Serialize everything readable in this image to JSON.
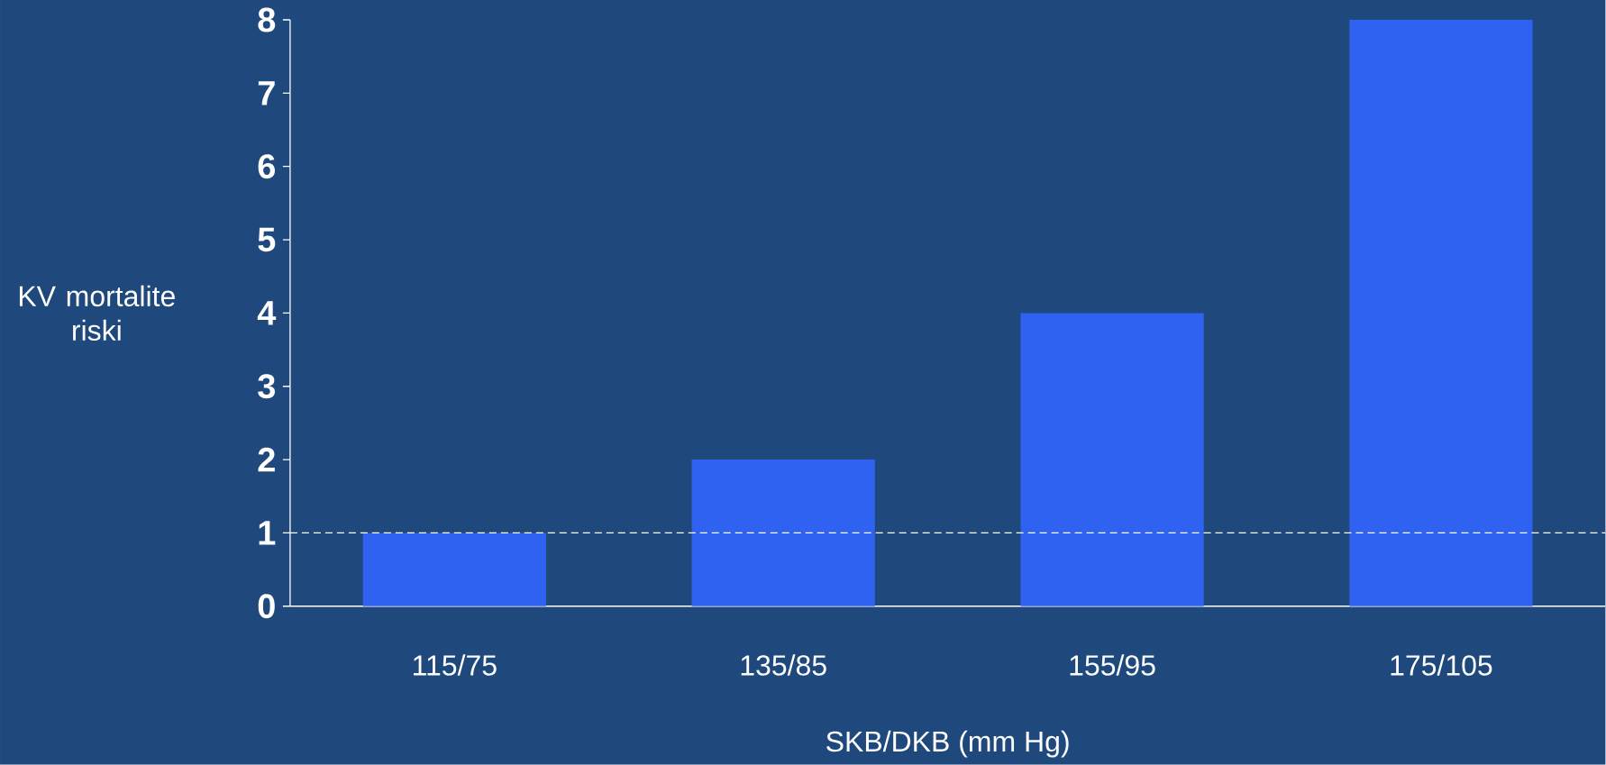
{
  "chart_data": {
    "type": "bar",
    "xlabel": "SKB/DKB (mm Hg)",
    "ylabel": "KV mortalite riski",
    "categories": [
      "115/75",
      "135/85",
      "155/95",
      "175/105"
    ],
    "values": [
      1,
      2,
      4,
      8
    ],
    "color": "#2f62f0",
    "ylim": [
      0,
      8
    ],
    "yticks": [
      0,
      1,
      2,
      3,
      4,
      5,
      6,
      7,
      8
    ],
    "ref_lines": [
      {
        "axis": "y",
        "value": 1,
        "color": "#ffffff",
        "line_style": "dashed"
      }
    ]
  }
}
